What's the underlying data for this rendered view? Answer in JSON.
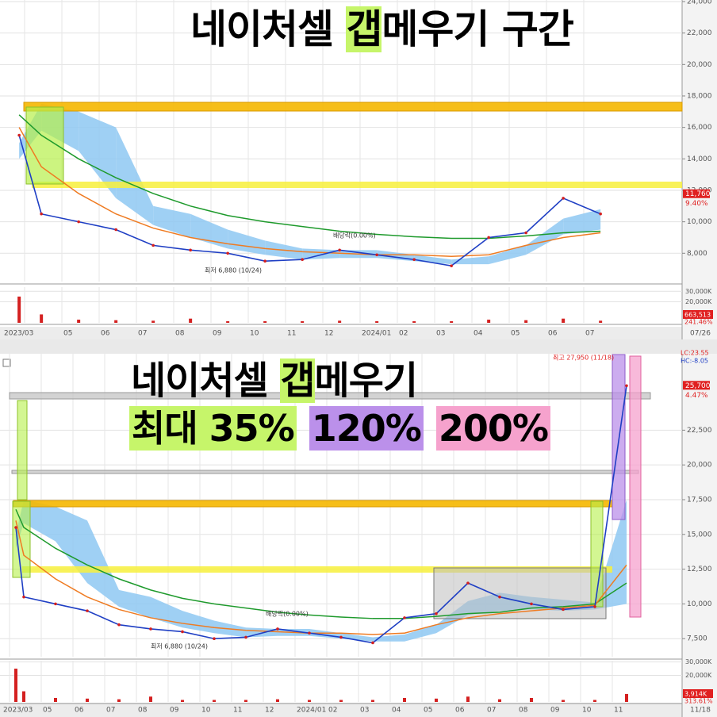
{
  "chart_data": [
    {
      "type": "stock",
      "title_parts": [
        "네이처셀",
        "갭",
        "메우기 구간"
      ],
      "categories": [
        "2023/03",
        null,
        "05",
        "06",
        "07",
        "08",
        "09",
        "10",
        "11",
        "12",
        "2024/01",
        "02",
        "03",
        "04",
        "05",
        "06",
        "07"
      ],
      "last_date": "07/26",
      "price": [
        15500,
        10500,
        10000,
        9500,
        8500,
        8200,
        8000,
        7500,
        7600,
        8200,
        7900,
        7600,
        7200,
        9000,
        9300,
        11500,
        10500
      ],
      "ma_long": [
        16800,
        15500,
        14000,
        12800,
        11800,
        11000,
        10400,
        10000,
        9700,
        9400,
        9200,
        9050,
        8950,
        8950,
        9100,
        9300,
        9400
      ],
      "ma_short": [
        16000,
        13500,
        11800,
        10500,
        9600,
        9000,
        8600,
        8300,
        8100,
        8000,
        7900,
        7900,
        7800,
        7900,
        8500,
        9000,
        9300
      ],
      "cloud_upper": [
        15000,
        17500,
        17000,
        16000,
        11000,
        10500,
        9500,
        8800,
        8300,
        8200,
        8200,
        7900,
        7600,
        7800,
        8500,
        10200,
        10800
      ],
      "cloud_lower": [
        14000,
        15800,
        14500,
        11500,
        9800,
        9000,
        8300,
        7900,
        7600,
        7700,
        7700,
        7500,
        7300,
        7300,
        7900,
        9200,
        9500
      ],
      "volume": [
        25000,
        8000,
        3000,
        2500,
        2000,
        4000,
        1500,
        1500,
        1500,
        2000,
        1500,
        1500,
        1500,
        3000,
        2500,
        4000,
        2000
      ],
      "colors": {
        "price": "#1f3fc4",
        "ma_long": "#1e9a2c",
        "ma_short": "#ef7b22",
        "cloud": "#8ec8f2",
        "volume": "#d42020"
      },
      "ylim": [
        6200,
        24100
      ],
      "yticks": [
        {
          "value": 8000,
          "label": "8,000"
        },
        {
          "value": 10000,
          "label": "10,000"
        },
        {
          "value": 12000,
          "label": "12,000"
        },
        {
          "value": 14000,
          "label": "14,000"
        },
        {
          "value": 16000,
          "label": "16,000"
        },
        {
          "value": 18000,
          "label": "18,000"
        },
        {
          "value": 20000,
          "label": "20,000"
        },
        {
          "value": 22000,
          "label": "22,000"
        },
        {
          "value": 24000,
          "label": "24,000"
        }
      ],
      "vlim": [
        0,
        34000
      ],
      "vticks": [
        {
          "value": 20000,
          "label": "20,000K"
        },
        {
          "value": 30000,
          "label": "30,000K"
        }
      ],
      "last_price": {
        "value": 11760,
        "label": "11,760"
      },
      "change": "9.40%",
      "volume_tag": [
        "663,513",
        "241.46%"
      ],
      "annotations": [
        "배당락(0.00%)",
        "최저 6,880 (10/24)"
      ],
      "grid": true
    },
    {
      "type": "stock",
      "title_parts": [
        "네이처셀",
        "갭",
        "메우기"
      ],
      "tags": [
        {
          "text": "최대 35%",
          "color": "#c6f56a"
        },
        {
          "text": "120%",
          "color": "#bb90ea"
        },
        {
          "text": "200%",
          "color": "#f6a2cd"
        }
      ],
      "categories": [
        "2023/03",
        null,
        "05",
        "06",
        "07",
        "08",
        "09",
        "10",
        "11",
        "12",
        "2024/01",
        "02",
        "03",
        "04",
        "05",
        "06",
        "07",
        "08",
        "09",
        "10",
        "11"
      ],
      "last_date": "11/18",
      "price": [
        15500,
        10500,
        10000,
        9500,
        8500,
        8200,
        8000,
        7500,
        7600,
        8200,
        7900,
        7600,
        7200,
        9000,
        9300,
        11500,
        10500,
        10000,
        9600,
        9800,
        25700
      ],
      "ma_long": [
        16800,
        15500,
        14000,
        12800,
        11800,
        11000,
        10400,
        10000,
        9700,
        9400,
        9200,
        9050,
        8950,
        8950,
        9100,
        9300,
        9400,
        9700,
        9800,
        10000,
        11500
      ],
      "ma_short": [
        16000,
        13500,
        11800,
        10500,
        9600,
        9000,
        8600,
        8300,
        8100,
        8000,
        7900,
        7900,
        7800,
        7900,
        8500,
        9000,
        9300,
        9500,
        9700,
        9900,
        12800
      ],
      "cloud_upper": [
        15000,
        17500,
        17000,
        16000,
        11000,
        10500,
        9500,
        8800,
        8300,
        8200,
        8200,
        7900,
        7600,
        7800,
        8500,
        10200,
        10800,
        10500,
        10300,
        10100,
        17500
      ],
      "cloud_lower": [
        14000,
        15800,
        14500,
        11500,
        9800,
        9000,
        8300,
        7900,
        7600,
        7700,
        7700,
        7500,
        7300,
        7300,
        7900,
        9200,
        9500,
        9600,
        9500,
        9600,
        10000
      ],
      "volume": [
        25000,
        8000,
        3000,
        2500,
        2000,
        4000,
        1500,
        1500,
        1500,
        2000,
        1500,
        1500,
        1500,
        3000,
        2500,
        4000,
        2000,
        3000,
        1500,
        1500,
        6000
      ],
      "colors": {
        "price": "#1f3fc4",
        "ma_long": "#1e9a2c",
        "ma_short": "#ef7b22",
        "cloud": "#8ec8f2",
        "volume": "#d42020"
      },
      "ylim": [
        6200,
        28000
      ],
      "yticks": [
        {
          "value": 7500,
          "label": "7,500"
        },
        {
          "value": 10000,
          "label": "10,000"
        },
        {
          "value": 12500,
          "label": "12,500"
        },
        {
          "value": 15000,
          "label": "15,000"
        },
        {
          "value": 17500,
          "label": "17,500"
        },
        {
          "value": 20000,
          "label": "20,000"
        },
        {
          "value": 22500,
          "label": "22,500"
        }
      ],
      "vlim": [
        0,
        31000
      ],
      "vticks": [
        {
          "value": 20000,
          "label": "20,000K"
        },
        {
          "value": 30000,
          "label": "30,000K"
        }
      ],
      "last_price": {
        "value": 25700,
        "label": "25,700"
      },
      "change": "4.47%",
      "volume_tag": [
        "3,914K",
        "313.61%"
      ],
      "annotations": [
        "배당락(0.00%)",
        "최저 6,880 (10/24)"
      ],
      "info": [
        "최고 27,950 (11/18)",
        "LC:23.55",
        "HC:-8.05"
      ],
      "grid": true
    }
  ]
}
